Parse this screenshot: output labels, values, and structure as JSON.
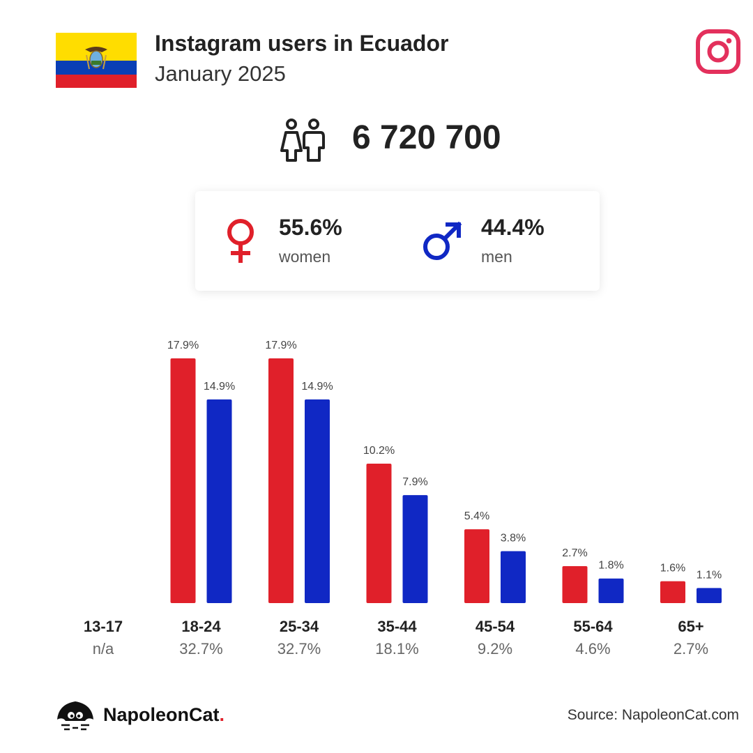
{
  "header": {
    "title": "Instagram users in Ecuador",
    "subtitle": "January 2025",
    "flag_icon": "ecuador-flag-icon",
    "platform_icon": "instagram-icon"
  },
  "total": {
    "value": "6 720 700",
    "icon": "people-icon"
  },
  "gender": {
    "women_pct": "55.6%",
    "women_label": "women",
    "men_pct": "44.4%",
    "men_label": "men"
  },
  "colors": {
    "women": "#e0202a",
    "men": "#1028c4",
    "instagram": "#e3305c"
  },
  "chart_data": {
    "type": "bar",
    "categories": [
      "13-17",
      "18-24",
      "25-34",
      "35-44",
      "45-54",
      "55-64",
      "65+"
    ],
    "category_shares": [
      "n/a",
      "32.7%",
      "32.7%",
      "18.1%",
      "9.2%",
      "4.6%",
      "2.7%"
    ],
    "series": [
      {
        "key": "women",
        "values": [
          null,
          17.9,
          17.9,
          10.2,
          5.4,
          2.7,
          1.6
        ]
      },
      {
        "key": "men",
        "values": [
          null,
          14.9,
          14.9,
          7.9,
          3.8,
          1.8,
          1.1
        ]
      }
    ],
    "value_labels": {
      "women": [
        "",
        "17.9%",
        "17.9%",
        "10.2%",
        "5.4%",
        "2.7%",
        "1.6%"
      ],
      "men": [
        "",
        "14.9%",
        "14.9%",
        "7.9%",
        "3.8%",
        "1.8%",
        "1.1%"
      ]
    },
    "ylim": [
      0,
      17.9
    ],
    "grid": false
  },
  "footer": {
    "logo_text": "NapoleonCat",
    "logo_dot": ".",
    "source": "Source: NapoleonCat.com"
  }
}
